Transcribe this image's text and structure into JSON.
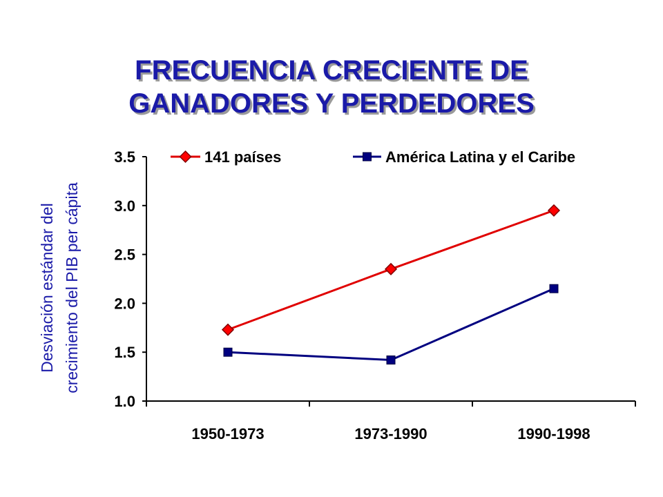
{
  "slide": {
    "title_line1": "FRECUENCIA CRECIENTE DE",
    "title_line2": "GANADORES Y PERDEDORES"
  },
  "chart_data": {
    "type": "line",
    "categories": [
      "1950-1973",
      "1973-1990",
      "1990-1998"
    ],
    "ylabel_line1": "Desviación estándar del",
    "ylabel_line2": "crecimiento del PIB per cápita",
    "ylim": [
      1.0,
      3.5
    ],
    "yticks": [
      "1.0",
      "1.5",
      "2.0",
      "2.5",
      "3.0",
      "3.5"
    ],
    "grid": false,
    "legend_position": "top",
    "series": [
      {
        "name": "141 países",
        "values": [
          1.73,
          2.35,
          2.95
        ],
        "color": "#e00000",
        "marker": "diamond",
        "marker_fill": "#ff0000"
      },
      {
        "name": "América Latina y el Caribe",
        "values": [
          1.5,
          1.42,
          2.15
        ],
        "color": "#000080",
        "marker": "square",
        "marker_fill": "#000080"
      }
    ]
  }
}
